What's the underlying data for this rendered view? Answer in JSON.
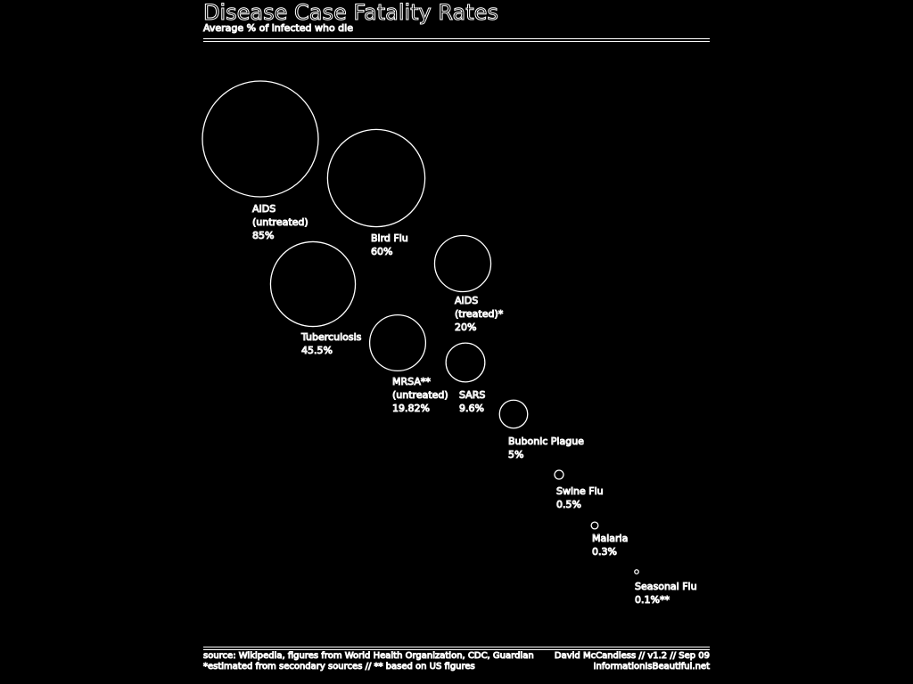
{
  "chart_data": {
    "type": "bubble",
    "title": "Disease Case Fatality Rates",
    "subtitle": "Average % of infected who die",
    "unit": "%",
    "points": [
      {
        "label": [
          "AIDS",
          "(untreated)"
        ],
        "value_label": "85%",
        "value": 85
      },
      {
        "label": [
          "Bird Flu"
        ],
        "value_label": "60%",
        "value": 60
      },
      {
        "label": [
          "Tuberculosis"
        ],
        "value_label": "45.5%",
        "value": 45.5
      },
      {
        "label": [
          "AIDS",
          "(treated)*"
        ],
        "value_label": "20%",
        "value": 20
      },
      {
        "label": [
          "MRSA**",
          "(untreated)"
        ],
        "value_label": "19.82%",
        "value": 19.82
      },
      {
        "label": [
          "SARS"
        ],
        "value_label": "9.6%",
        "value": 9.6
      },
      {
        "label": [
          "Bubonic Plague"
        ],
        "value_label": "5%",
        "value": 5
      },
      {
        "label": [
          "Swine Flu"
        ],
        "value_label": "0.5%",
        "value": 0.5
      },
      {
        "label": [
          "Malaria"
        ],
        "value_label": "0.3%",
        "value": 0.3
      },
      {
        "label": [
          "Seasonal Flu"
        ],
        "value_label": "0.1%**",
        "value": 0.1
      }
    ]
  },
  "footer": {
    "source_1": "source: Wikipedia, figures from World Health Organization, CDC, Guardian",
    "source_2": "*estimated from secondary sources // ** based on US figures",
    "credit_1": "David McCandless // v1.2 // Sep 09",
    "credit_2": "InformationIsBeautiful.net"
  }
}
